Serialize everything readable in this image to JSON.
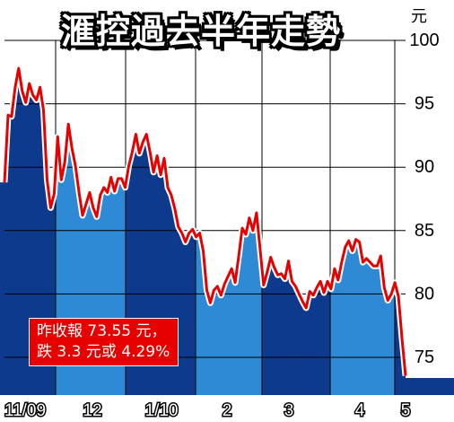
{
  "title": "滙控過去半年走勢",
  "unit": "元",
  "annotation": {
    "line1": "昨收報 73.55 元，",
    "line2": "跌 3.3 元或 4.29%"
  },
  "colors": {
    "dark_band": "#0d3a8c",
    "light_band": "#2f8ad6",
    "line": "#e60000",
    "grid": "#000000",
    "annotation_bg": "#e60000"
  },
  "chart_data": {
    "type": "line",
    "title": "滙控過去半年走勢",
    "ylabel": "元",
    "ylim": [
      72,
      101
    ],
    "yticks": [
      100,
      95,
      90,
      85,
      80,
      75
    ],
    "grid": true,
    "month_labels": [
      "11/09",
      "12",
      "1/10",
      "2",
      "3",
      "4",
      "5"
    ],
    "last_value": 73.55,
    "series": [
      {
        "values": [
          88.8,
          94.1,
          94.0,
          96.3,
          97.8,
          96.0,
          95.1,
          96.6,
          95.7,
          95.3,
          96.3,
          94.5,
          89.0,
          86.8,
          87.9,
          92.4,
          89.0,
          90.4,
          93.4,
          91.5,
          90.1,
          88.0,
          86.2,
          87.1,
          88.0,
          86.8,
          86.1,
          87.8,
          88.4,
          88.0,
          89.2,
          88.1,
          89.1,
          89.1,
          88.4,
          90.1,
          91.2,
          92.6,
          91.1,
          92.0,
          92.6,
          91.2,
          89.6,
          90.9,
          89.4,
          90.7,
          88.4,
          87.8,
          86.7,
          85.3,
          84.8,
          84.1,
          84.8,
          85.1,
          84.5,
          84.8,
          83.4,
          80.3,
          79.3,
          80.3,
          80.6,
          79.9,
          80.8,
          81.4,
          82.0,
          80.9,
          83.0,
          85.2,
          84.7,
          86.0,
          85.0,
          86.4,
          83.6,
          80.7,
          81.7,
          82.9,
          82.1,
          81.5,
          81.6,
          81.2,
          82.6,
          81.0,
          80.6,
          80.0,
          79.4,
          78.9,
          80.2,
          79.9,
          80.5,
          81.0,
          80.1,
          81.0,
          80.4,
          82.0,
          81.1,
          82.5,
          83.7,
          84.2,
          83.4,
          84.3,
          84.1,
          82.5,
          82.8,
          82.5,
          82.2,
          82.2,
          83.0,
          80.5,
          79.5,
          80.0,
          80.9,
          79.8,
          76.5,
          73.55
        ]
      }
    ]
  }
}
